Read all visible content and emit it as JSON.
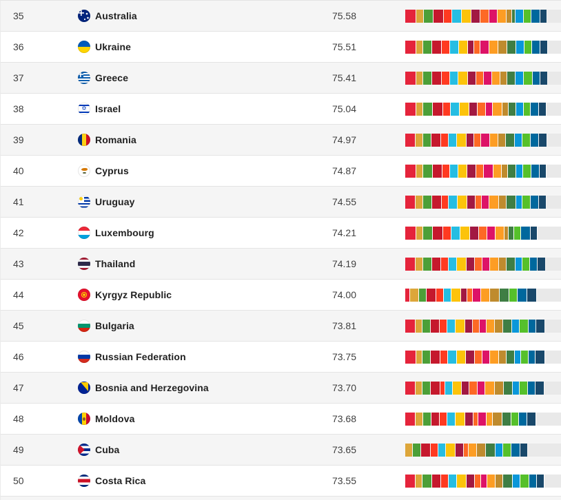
{
  "table": {
    "description": "SDG Index country rankings list (ranks 35-50) with overall score and 17-goal colored progress bar",
    "sdg_colors": [
      "#e5243b",
      "#dda63a",
      "#4c9f38",
      "#c5192d",
      "#ff3a21",
      "#26bde2",
      "#fcc30b",
      "#a21942",
      "#fd6925",
      "#dd1367",
      "#fd9d24",
      "#bf8b2e",
      "#3f7e44",
      "#0a97d9",
      "#56c02b",
      "#00689d",
      "#19486a"
    ],
    "remainder_color": "#e9e9e9",
    "shaded_row_color": "#f5f5f5",
    "rows": [
      {
        "rank": "35",
        "country": "Australia",
        "flag": "au",
        "score": "75.58",
        "goals": [
          99,
          68,
          92,
          95,
          75,
          84,
          88,
          80,
          82,
          74,
          82,
          48,
          30,
          70,
          68,
          85,
          58
        ]
      },
      {
        "rank": "36",
        "country": "Ukraine",
        "flag": "ua",
        "score": "75.51",
        "goals": [
          98,
          66,
          78,
          90,
          74,
          80,
          84,
          52,
          56,
          82,
          78,
          82,
          84,
          70,
          72,
          68,
          70
        ]
      },
      {
        "rank": "37",
        "country": "Greece",
        "flag": "gr",
        "score": "75.41",
        "goals": [
          99,
          60,
          84,
          90,
          70,
          80,
          88,
          70,
          66,
          74,
          78,
          62,
          76,
          68,
          82,
          72,
          66
        ]
      },
      {
        "rank": "38",
        "country": "Israel",
        "flag": "il",
        "score": "75.04",
        "goals": [
          99,
          64,
          90,
          92,
          70,
          78,
          86,
          78,
          72,
          64,
          84,
          56,
          68,
          66,
          62,
          74,
          70
        ]
      },
      {
        "rank": "39",
        "country": "Romania",
        "flag": "ro",
        "score": "74.97",
        "goals": [
          97,
          66,
          76,
          88,
          62,
          78,
          84,
          74,
          56,
          80,
          78,
          70,
          80,
          66,
          74,
          72,
          74
        ]
      },
      {
        "rank": "40",
        "country": "Cyprus",
        "flag": "cy",
        "score": "74.87",
        "goals": [
          99,
          62,
          86,
          88,
          68,
          76,
          84,
          82,
          68,
          84,
          78,
          54,
          72,
          58,
          78,
          74,
          62
        ]
      },
      {
        "rank": "41",
        "country": "Uruguay",
        "flag": "uy",
        "score": "74.55",
        "goals": [
          96,
          68,
          80,
          84,
          66,
          80,
          88,
          72,
          58,
          66,
          84,
          72,
          84,
          60,
          68,
          76,
          66
        ]
      },
      {
        "rank": "42",
        "country": "Luxembourg",
        "flag": "lu",
        "score": "74.21",
        "goals": [
          99,
          66,
          88,
          90,
          74,
          82,
          86,
          84,
          76,
          70,
          82,
          36,
          46,
          0,
          62,
          86,
          60
        ]
      },
      {
        "rank": "43",
        "country": "Thailand",
        "flag": "th",
        "score": "74.19",
        "goals": [
          96,
          64,
          80,
          82,
          70,
          76,
          84,
          76,
          66,
          72,
          78,
          70,
          79,
          62,
          64,
          68,
          74
        ]
      },
      {
        "rank": "44",
        "country": "Kyrgyz Republic",
        "flag": "kg",
        "score": "74.00",
        "goals": [
          42,
          78,
          72,
          88,
          68,
          62,
          90,
          52,
          48,
          74,
          84,
          86,
          88,
          0,
          78,
          86,
          88
        ]
      },
      {
        "rank": "45",
        "country": "Bulgaria",
        "flag": "bg",
        "score": "73.81",
        "goals": [
          96,
          62,
          74,
          82,
          66,
          74,
          84,
          70,
          58,
          64,
          76,
          72,
          80,
          70,
          78,
          70,
          79
        ]
      },
      {
        "rank": "46",
        "country": "Russian Federation",
        "flag": "ru",
        "score": "73.75",
        "goals": [
          98,
          58,
          72,
          90,
          70,
          76,
          84,
          80,
          66,
          70,
          82,
          66,
          72,
          56,
          70,
          60,
          84
        ]
      },
      {
        "rank": "47",
        "country": "Bosnia and Herzegovina",
        "flag": "ba",
        "score": "73.70",
        "goals": [
          96,
          62,
          74,
          84,
          40,
          72,
          82,
          68,
          70,
          72,
          86,
          78,
          80,
          62,
          74,
          72,
          81
        ]
      },
      {
        "rank": "48",
        "country": "Moldova",
        "flag": "md",
        "score": "73.68",
        "goals": [
          94,
          68,
          72,
          80,
          66,
          70,
          88,
          76,
          40,
          74,
          58,
          84,
          82,
          0,
          70,
          74,
          83
        ]
      },
      {
        "rank": "49",
        "country": "Cuba",
        "flag": "cu",
        "score": "73.65",
        "goals": [
          0,
          66,
          78,
          86,
          70,
          68,
          84,
          76,
          42,
          0,
          74,
          82,
          86,
          70,
          74,
          80,
          69
        ]
      },
      {
        "rank": "50",
        "country": "Costa Rica",
        "flag": "cr",
        "score": "73.55",
        "goals": [
          92,
          66,
          84,
          80,
          70,
          76,
          86,
          74,
          56,
          52,
          76,
          70,
          82,
          72,
          80,
          70,
          64
        ]
      }
    ]
  }
}
